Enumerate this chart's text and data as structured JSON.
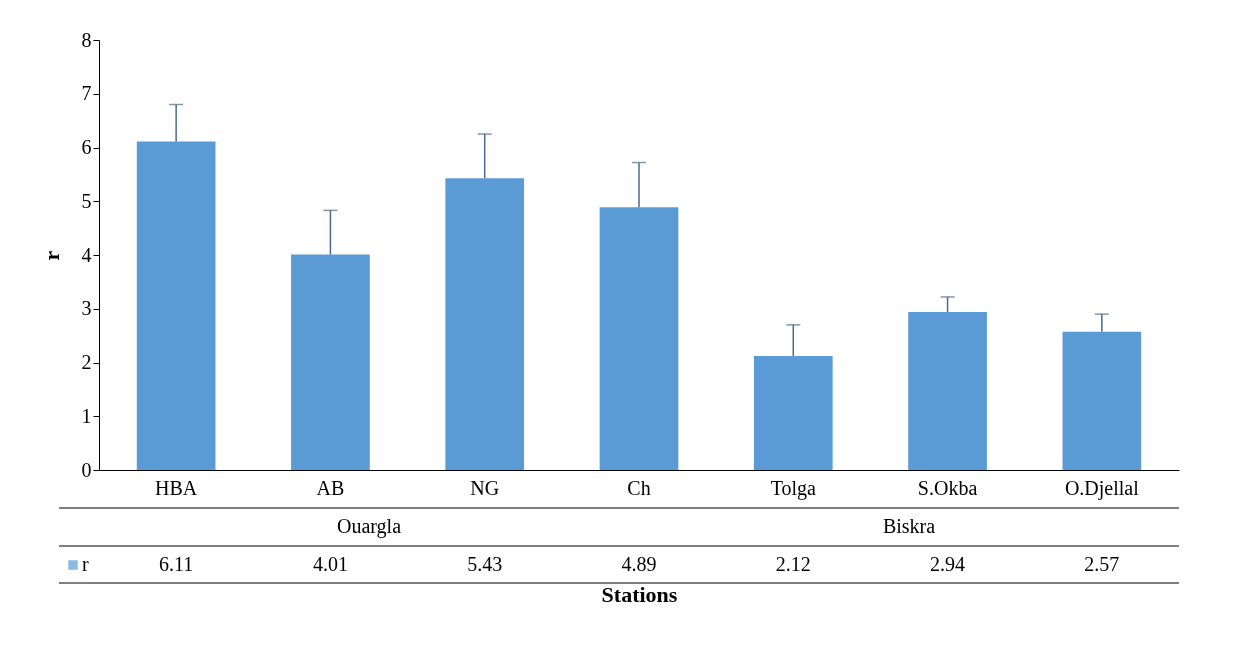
{
  "chart_data": {
    "type": "bar",
    "xlabel": "Stations",
    "ylabel": "r",
    "categories": [
      "HBA",
      "AB",
      "NG",
      "Ch",
      "Tolga",
      "S.Okba",
      "O.Djellal"
    ],
    "series": [
      {
        "name": "r",
        "color": "#5b9bd5",
        "values": [
          6.11,
          4.01,
          5.43,
          4.89,
          2.12,
          2.94,
          2.57
        ],
        "errors": [
          [
            6.11,
            6.8
          ],
          [
            4.01,
            4.83
          ],
          [
            5.43,
            6.25
          ],
          [
            4.89,
            5.72
          ],
          [
            2.12,
            2.7
          ],
          [
            2.94,
            3.22
          ],
          [
            2.57,
            2.9
          ]
        ]
      }
    ],
    "ylim": [
      0,
      8
    ],
    "yticks": [
      0,
      1,
      2,
      3,
      4,
      5,
      6,
      7,
      8
    ],
    "data_labels": true,
    "legend": "bottom",
    "grid": false,
    "annotations": [
      "Ouargla",
      "Biskra"
    ]
  }
}
